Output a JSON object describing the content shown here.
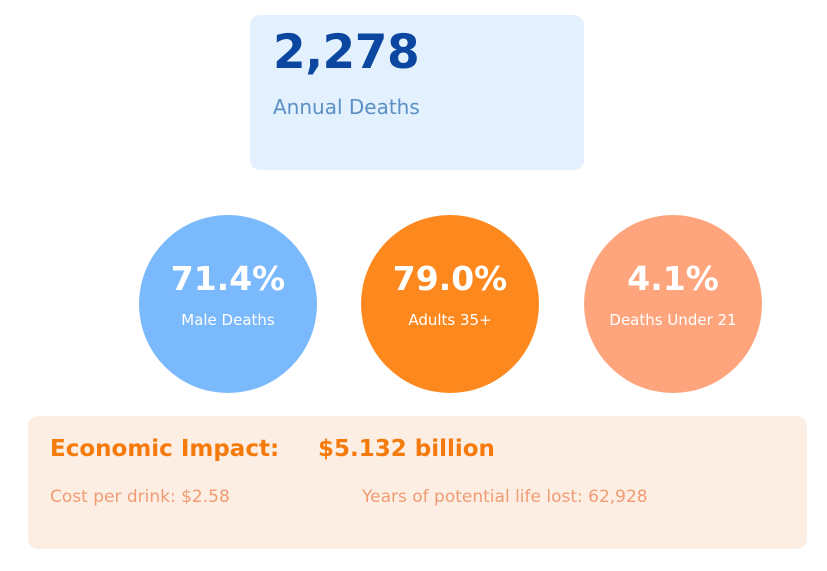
{
  "headline": {
    "value": "2,278",
    "label": "Annual Deaths"
  },
  "stats": [
    {
      "value": "71.4%",
      "label": "Male Deaths",
      "color": "#7ab9fb"
    },
    {
      "value": "79.0%",
      "label": "Adults 35+",
      "color": "#fd891e"
    },
    {
      "value": "4.1%",
      "label": "Deaths Under 21",
      "color": "#fea57d"
    }
  ],
  "economic": {
    "title": "Economic Impact:",
    "value": "$5.132 billion",
    "cost_per_drink": "Cost per drink: $2.58",
    "years_lost": "Years of potential life lost: 62,928"
  },
  "colors": {
    "headline_bg": "#e3f0fd",
    "headline_value": "#0b47a1",
    "headline_label": "#5b8fc5",
    "impact_bg": "#fdeee4",
    "impact_accent": "#f57a0c",
    "impact_detail": "#f09c73"
  }
}
